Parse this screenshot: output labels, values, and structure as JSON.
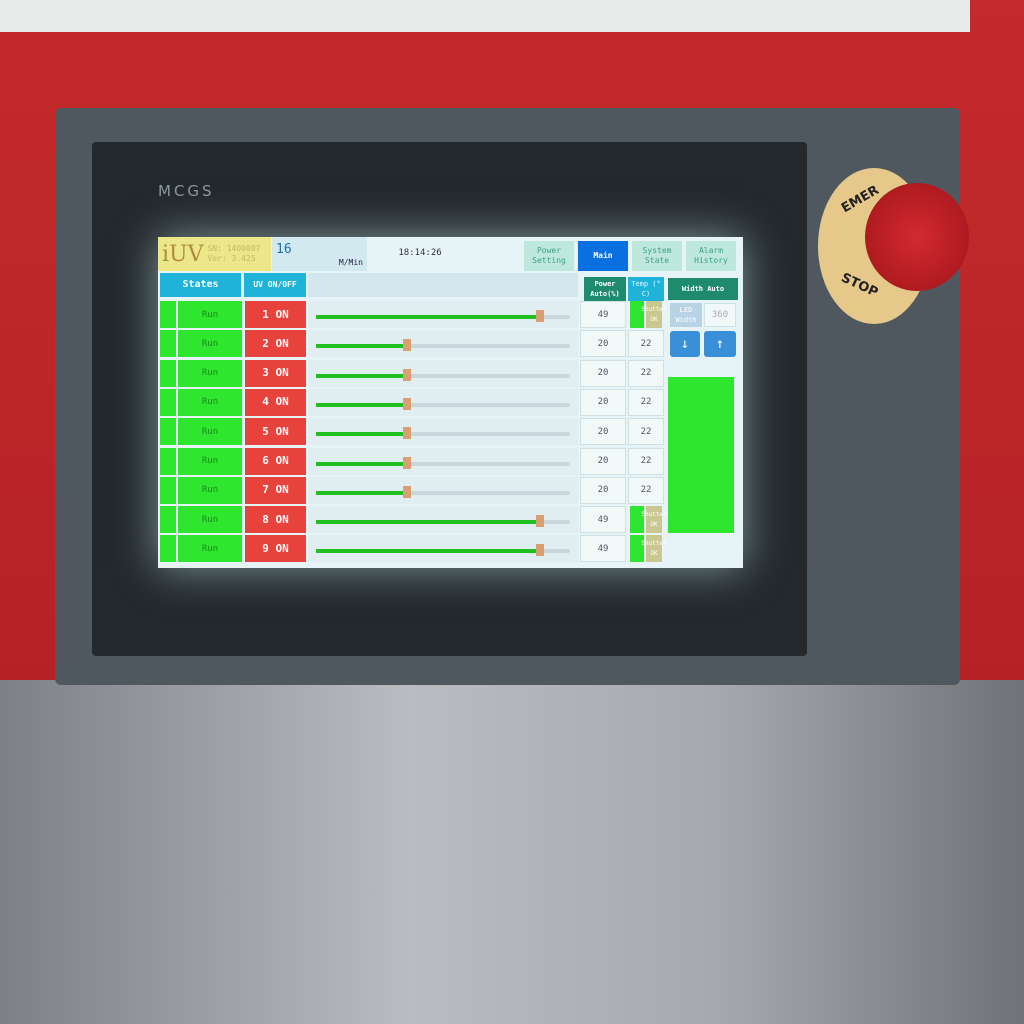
{
  "device": {
    "brand": "MCGS",
    "estop_label_top": "EMER",
    "estop_label_bottom": "STOP"
  },
  "header": {
    "logo": "iUV",
    "sn": "SN: 1400007",
    "ver": "Ver: 3.425",
    "speed": "16",
    "speed_unit": "M/Min",
    "time": "18:14:26"
  },
  "tabs": [
    {
      "label": "Power Setting",
      "active": false
    },
    {
      "label": "Main",
      "active": true
    },
    {
      "label": "System State",
      "active": false
    },
    {
      "label": "Alarm History",
      "active": false
    }
  ],
  "columns": {
    "states": "States",
    "uv": "UV ON/OFF",
    "power": "Power Auto(%)",
    "temp": "Temp (° C)",
    "width": "Width Auto"
  },
  "rows": [
    {
      "state": "Run",
      "uv": "1 ON",
      "power": 49,
      "temp": ""
    },
    {
      "state": "Run",
      "uv": "2 ON",
      "power": 20,
      "temp": "22"
    },
    {
      "state": "Run",
      "uv": "3 ON",
      "power": 20,
      "temp": "22"
    },
    {
      "state": "Run",
      "uv": "4 ON",
      "power": 20,
      "temp": "22"
    },
    {
      "state": "Run",
      "uv": "5 ON",
      "power": 20,
      "temp": "22"
    },
    {
      "state": "Run",
      "uv": "6 ON",
      "power": 20,
      "temp": "22"
    },
    {
      "state": "Run",
      "uv": "7 ON",
      "power": 20,
      "temp": "22"
    },
    {
      "state": "Run",
      "uv": "8 ON",
      "power": 49,
      "temp": ""
    },
    {
      "state": "Run",
      "uv": "9 ON",
      "power": 49,
      "temp": ""
    }
  ],
  "shutter": {
    "label": "Shutter OK"
  },
  "width_panel": {
    "led_label": "LED Width",
    "led_value": "360",
    "down": "↓",
    "up": "↑"
  },
  "colors": {
    "run": "#2ee62e",
    "uv_on": "#e8423c",
    "header": "#1fb3d9",
    "main_tab": "#0a6fe0"
  }
}
